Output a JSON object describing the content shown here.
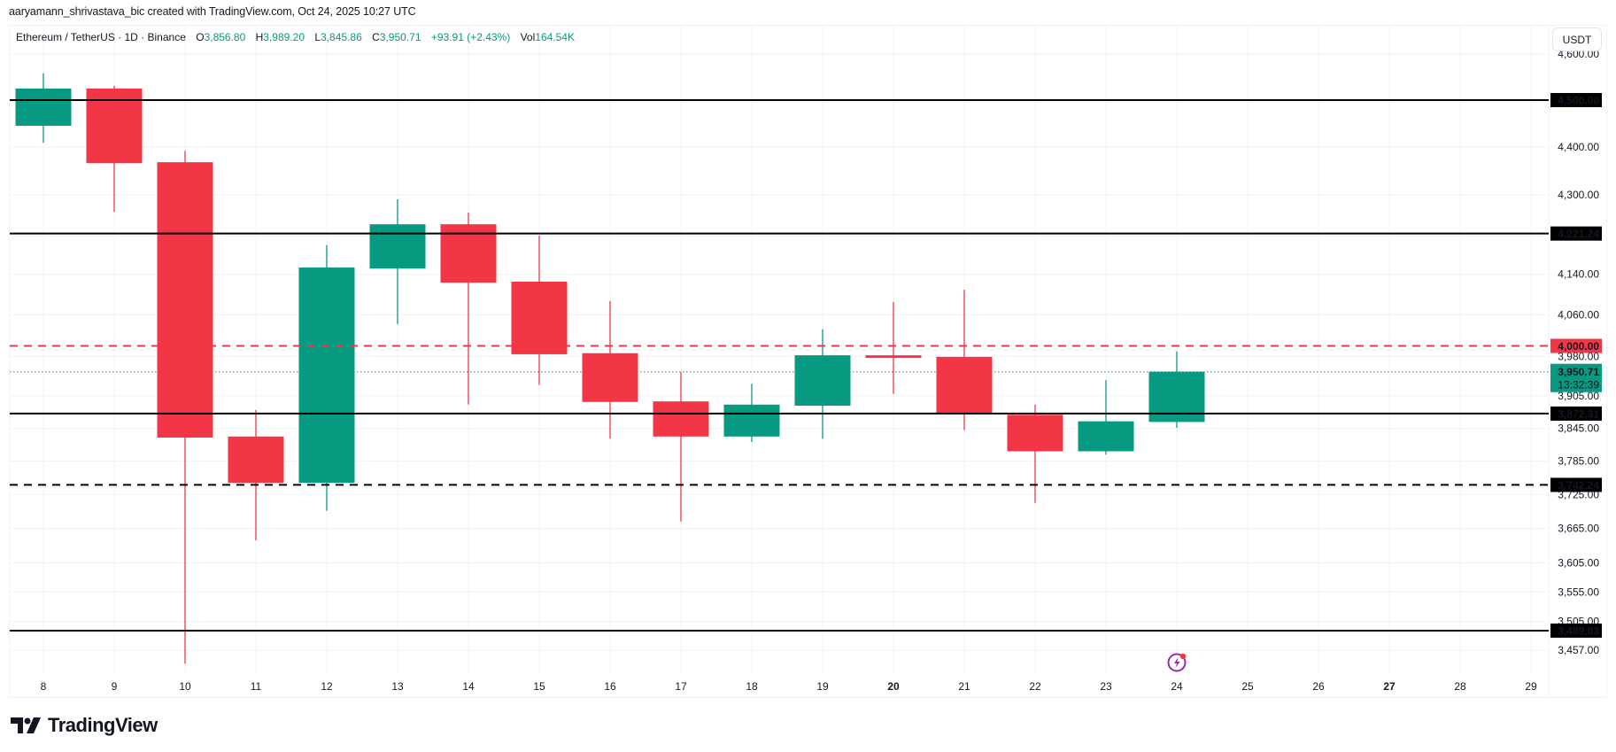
{
  "attribution": "aaryamann_shrivastava_bic created with TradingView.com, Oct 24, 2025 10:27 UTC",
  "legend": {
    "symbol": "Ethereum / TetherUS · 1D · Binance",
    "open_label": "O",
    "open": "3,856.80",
    "high_label": "H",
    "high": "3,989.20",
    "low_label": "L",
    "low": "3,845.86",
    "close_label": "C",
    "close": "3,950.71",
    "change": "+93.91 (+2.43%)",
    "vol_label": "Vol",
    "vol": "164.54K"
  },
  "currency_button": "USDT",
  "logo_text": "TradingView",
  "colors": {
    "up": "#089981",
    "down": "#f23645",
    "line": "#000000",
    "grid": "#f0f3fa",
    "event": "#9c27b0"
  },
  "chart_data": {
    "type": "candlestick",
    "title": "Ethereum / TetherUS · 1D · Binance",
    "xlabel": "",
    "ylabel": "USDT",
    "y_scale": "log",
    "ylim": [
      3420,
      4620
    ],
    "grid": true,
    "x_ticks": [
      "8",
      "9",
      "10",
      "11",
      "12",
      "13",
      "14",
      "15",
      "16",
      "17",
      "18",
      "19",
      "20",
      "21",
      "22",
      "23",
      "24",
      "25",
      "26",
      "27",
      "28",
      "29"
    ],
    "y_ticks": [
      "4,600.00",
      "4,400.00",
      "4,300.00",
      "4,140.00",
      "4,060.00",
      "3,980.00",
      "3,905.00",
      "3,845.00",
      "3,785.00",
      "3,725.00",
      "3,665.00",
      "3,605.00",
      "3,555.00",
      "3,505.00",
      "3,457.00"
    ],
    "candles": [
      {
        "day": "8",
        "open": 4445,
        "high": 4558,
        "low": 4409,
        "close": 4525
      },
      {
        "day": "9",
        "open": 4525,
        "high": 4531,
        "low": 4265,
        "close": 4366
      },
      {
        "day": "10",
        "open": 4368,
        "high": 4392,
        "low": 3435,
        "close": 3828
      },
      {
        "day": "11",
        "open": 3830,
        "high": 3879,
        "low": 3644,
        "close": 3746
      },
      {
        "day": "12",
        "open": 3746,
        "high": 4198,
        "low": 3696,
        "close": 4153
      },
      {
        "day": "13",
        "open": 4151,
        "high": 4291,
        "low": 4042,
        "close": 4240
      },
      {
        "day": "14",
        "open": 4240,
        "high": 4264,
        "low": 3889,
        "close": 4123
      },
      {
        "day": "15",
        "open": 4125,
        "high": 4217,
        "low": 3926,
        "close": 3984
      },
      {
        "day": "16",
        "open": 3986,
        "high": 4087,
        "low": 3826,
        "close": 3894
      },
      {
        "day": "17",
        "open": 3895,
        "high": 3950,
        "low": 3677,
        "close": 3830
      },
      {
        "day": "18",
        "open": 3830,
        "high": 3928,
        "low": 3820,
        "close": 3889
      },
      {
        "day": "19",
        "open": 3887,
        "high": 4032,
        "low": 3826,
        "close": 3982
      },
      {
        "day": "20",
        "open": 3982,
        "high": 4085,
        "low": 3909,
        "close": 3977
      },
      {
        "day": "21",
        "open": 3979,
        "high": 4109,
        "low": 3842,
        "close": 3873
      },
      {
        "day": "22",
        "open": 3870,
        "high": 3889,
        "low": 3710,
        "close": 3803
      },
      {
        "day": "23",
        "open": 3803,
        "high": 3935,
        "low": 3797,
        "close": 3858
      },
      {
        "day": "24",
        "open": 3856.8,
        "high": 3989.2,
        "low": 3845.86,
        "close": 3950.71
      }
    ],
    "levels": [
      {
        "price": 4500.0,
        "label": "4,500.00",
        "style": "solid",
        "color": "#000000"
      },
      {
        "price": 4221.24,
        "label": "4,221.24",
        "style": "solid",
        "color": "#000000"
      },
      {
        "price": 4000.0,
        "label": "4,000.00",
        "style": "dashed",
        "color": "#f23645"
      },
      {
        "price": 3872.31,
        "label": "3,872.31",
        "style": "solid",
        "color": "#000000"
      },
      {
        "price": 3742.24,
        "label": "3,742.24",
        "style": "dashed",
        "color": "#000000"
      },
      {
        "price": 3489.83,
        "label": "3,489.83",
        "style": "solid",
        "color": "#000000"
      }
    ],
    "last_price": {
      "price": 3950.71,
      "label": "3,950.71",
      "countdown": "13:32:39",
      "color": "#089981"
    },
    "event_marker": {
      "day": "24",
      "icon": "lightning-event-icon"
    }
  }
}
